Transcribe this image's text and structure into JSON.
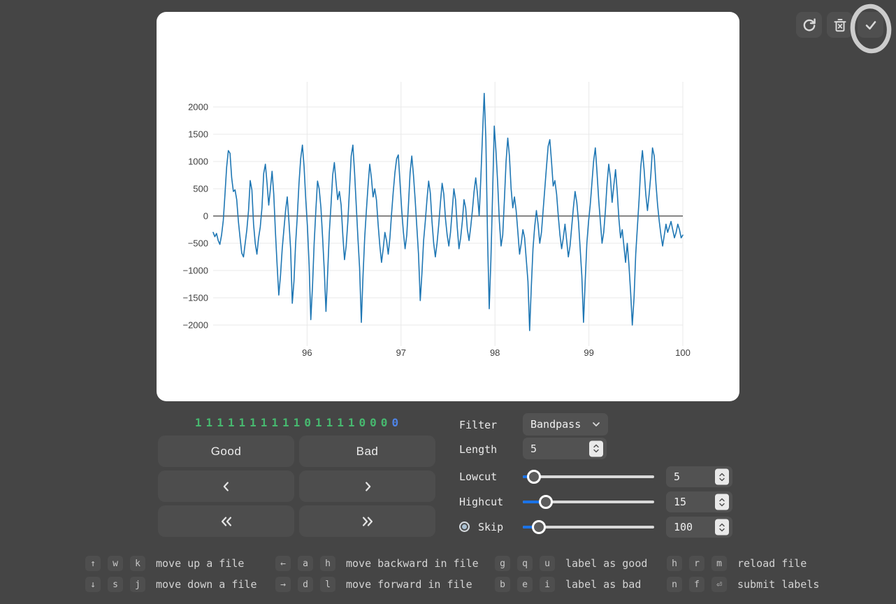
{
  "toolbar": {
    "buttons": [
      {
        "name": "reload-file",
        "icon": "refresh-icon"
      },
      {
        "name": "delete-file",
        "icon": "trash-x-icon"
      },
      {
        "name": "submit-labels",
        "icon": "check-icon",
        "annotation": "hand-drawn-circle"
      }
    ],
    "annotation_color": "#cccccc"
  },
  "labels": {
    "good": "Good",
    "bad": "Bad"
  },
  "sequence": {
    "digits": [
      "1",
      "1",
      "1",
      "1",
      "1",
      "1",
      "1",
      "1",
      "1",
      "1",
      "0",
      "1",
      "1",
      "1",
      "1",
      "0",
      "0",
      "0",
      "0"
    ],
    "active_index": 18,
    "digit_color": "#47b96f",
    "active_color": "#4e83e6"
  },
  "filter": {
    "label": "Filter",
    "value": "Bandpass"
  },
  "length": {
    "label": "Length",
    "value": "5"
  },
  "sliders": [
    {
      "label": "Lowcut",
      "value": "5",
      "fraction": 0.085,
      "radio": false
    },
    {
      "label": "Highcut",
      "value": "15",
      "fraction": 0.176,
      "radio": false
    },
    {
      "label": "Skip",
      "value": "100",
      "fraction": 0.122,
      "radio": true,
      "radio_selected": true
    }
  ],
  "shortcuts": [
    {
      "keys": [
        "↑",
        "w",
        "k"
      ],
      "action": "move up a file"
    },
    {
      "keys": [
        "←",
        "a",
        "h"
      ],
      "action": "move backward in file"
    },
    {
      "keys": [
        "g",
        "q",
        "u"
      ],
      "action": "label as good"
    },
    {
      "keys": [
        "h",
        "r",
        "m"
      ],
      "action": "reload file"
    },
    {
      "keys": [
        "↓",
        "s",
        "j"
      ],
      "action": "move down a file"
    },
    {
      "keys": [
        "→",
        "d",
        "l"
      ],
      "action": "move forward in file"
    },
    {
      "keys": [
        "b",
        "e",
        "i"
      ],
      "action": "label as bad"
    },
    {
      "keys": [
        "n",
        "f",
        "⏎"
      ],
      "action": "submit labels"
    }
  ],
  "chart_data": {
    "type": "line",
    "title": "",
    "xlabel": "",
    "ylabel": "",
    "x_start": 95,
    "x_end": 100,
    "x_ticks": [
      96,
      97,
      98,
      99,
      100
    ],
    "x_tick_labels": [
      "96",
      "97",
      "98",
      "99",
      "100"
    ],
    "y_ticks": [
      2000,
      1500,
      1000,
      500,
      0,
      -500,
      -1000,
      -1500,
      -2000
    ],
    "y_tick_labels": [
      "2000",
      "1500",
      "1000",
      "500",
      "0",
      "−500",
      "−1000",
      "−1500",
      "−2000"
    ],
    "ylim": [
      -2385,
      2460
    ],
    "grid": true,
    "grid_color": "#e9e9e9",
    "zero_line_color": "#3f3f3f",
    "tick_color": "#3f3f3f",
    "line_color": "#1f77b4",
    "background": "#ffffff",
    "values": [
      -300,
      -380,
      -320,
      -450,
      -520,
      -350,
      -80,
      400,
      900,
      1200,
      1150,
      700,
      450,
      480,
      300,
      -100,
      -400,
      -680,
      -750,
      -500,
      -250,
      100,
      650,
      480,
      -150,
      -500,
      -700,
      -400,
      -200,
      150,
      780,
      950,
      600,
      200,
      500,
      820,
      400,
      -300,
      -900,
      -1450,
      -1100,
      -600,
      -250,
      100,
      350,
      -100,
      -600,
      -1600,
      -1200,
      -500,
      0,
      600,
      1050,
      1300,
      900,
      300,
      -200,
      -900,
      -1900,
      -1300,
      -500,
      100,
      640,
      500,
      150,
      -400,
      -1000,
      -1750,
      -1050,
      -300,
      200,
      750,
      980,
      620,
      300,
      450,
      200,
      -350,
      -800,
      -550,
      -100,
      500,
      1100,
      1300,
      800,
      200,
      -400,
      -950,
      -1950,
      -1100,
      -400,
      100,
      550,
      950,
      700,
      350,
      500,
      300,
      -150,
      -550,
      -850,
      -600,
      -300,
      -450,
      -700,
      -400,
      50,
      450,
      800,
      1050,
      1120,
      600,
      100,
      -300,
      -600,
      -350,
      200,
      800,
      1100,
      750,
      300,
      -200,
      -700,
      -1550,
      -1050,
      -450,
      -100,
      300,
      640,
      420,
      -100,
      -500,
      -750,
      -500,
      -150,
      250,
      600,
      400,
      -50,
      -350,
      -550,
      -300,
      100,
      500,
      300,
      -200,
      -600,
      -400,
      -100,
      300,
      150,
      -250,
      -450,
      -200,
      100,
      450,
      700,
      400,
      0,
      700,
      1500,
      2250,
      1400,
      -400,
      -1700,
      -800,
      400,
      1650,
      1200,
      600,
      -100,
      -550,
      -350,
      300,
      1000,
      1430,
      1100,
      500,
      150,
      350,
      100,
      -300,
      -700,
      -500,
      -250,
      -400,
      -800,
      -1200,
      -2100,
      -1300,
      -600,
      -200,
      100,
      -150,
      -500,
      -300,
      100,
      500,
      900,
      1280,
      1400,
      1000,
      550,
      650,
      400,
      0,
      -350,
      -600,
      -400,
      -150,
      -450,
      -750,
      -550,
      -200,
      150,
      450,
      250,
      -100,
      -600,
      -1100,
      -1950,
      -1200,
      -500,
      -100,
      200,
      600,
      1000,
      1250,
      800,
      300,
      -100,
      -500,
      -300,
      100,
      600,
      950,
      700,
      250,
      550,
      850,
      450,
      -50,
      -400,
      -250,
      -550,
      -850,
      -500,
      -900,
      -1400,
      -2000,
      -1500,
      -700,
      -200,
      300,
      900,
      1200,
      850,
      400,
      100,
      400,
      750,
      1250,
      1100,
      600,
      200,
      -100,
      -350,
      -550,
      -350,
      -150,
      -300,
      -200,
      -100,
      -250,
      -400,
      -300,
      -150,
      -250,
      -400,
      -350
    ]
  }
}
